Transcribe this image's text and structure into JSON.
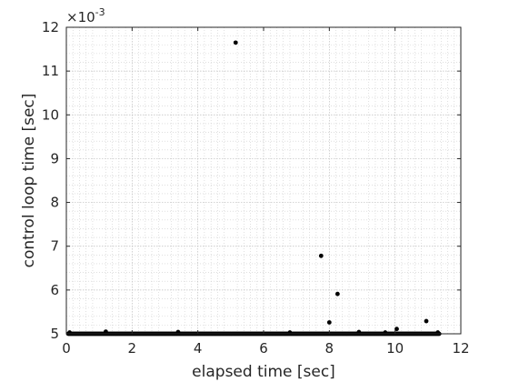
{
  "chart_data": {
    "type": "scatter",
    "title": "",
    "xlabel": "elapsed time [sec]",
    "ylabel": "control loop time [sec]",
    "xlim": [
      0,
      12
    ],
    "ylim": [
      0.005,
      0.012
    ],
    "xticks": [
      "0",
      "2",
      "4",
      "6",
      "8",
      "10",
      "12"
    ],
    "yticks": [
      "5",
      "6",
      "7",
      "8",
      "9",
      "10",
      "11",
      "12"
    ],
    "y_exponent_label": "×10",
    "y_exponent_power": "-3",
    "grid": true,
    "minor_grid": true,
    "marker_color": "#000000",
    "series": [
      {
        "baseline": {
          "x_start": 0.05,
          "x_end": 11.35,
          "step": 0.01,
          "y": 0.005
        },
        "outliers": [
          {
            "x": 5.15,
            "y": 0.01165
          },
          {
            "x": 7.75,
            "y": 0.00678
          },
          {
            "x": 8.25,
            "y": 0.00591
          },
          {
            "x": 8.0,
            "y": 0.00526
          },
          {
            "x": 10.95,
            "y": 0.00529
          },
          {
            "x": 10.05,
            "y": 0.00511
          },
          {
            "x": 1.2,
            "y": 0.00505
          },
          {
            "x": 0.1,
            "y": 0.00503
          },
          {
            "x": 3.4,
            "y": 0.00504
          },
          {
            "x": 6.8,
            "y": 0.00503
          },
          {
            "x": 8.9,
            "y": 0.00504
          },
          {
            "x": 9.7,
            "y": 0.00503
          },
          {
            "x": 11.3,
            "y": 0.00503
          }
        ]
      }
    ]
  }
}
